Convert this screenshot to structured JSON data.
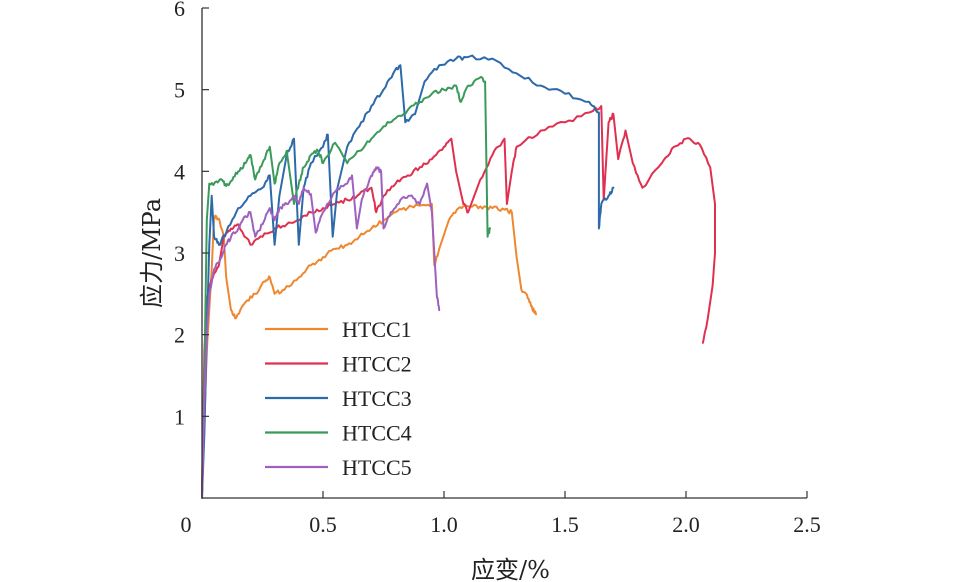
{
  "chart_data": {
    "type": "line",
    "title": "",
    "xlabel": "应变/%",
    "ylabel": "应力/MPa",
    "xlim": [
      0,
      2.5
    ],
    "ylim": [
      0,
      6
    ],
    "xticks": [
      {
        "value": 0,
        "label": "0"
      },
      {
        "value": 0.5,
        "label": "0.5"
      },
      {
        "value": 1.0,
        "label": "1.0"
      },
      {
        "value": 1.5,
        "label": "1.5"
      },
      {
        "value": 2.0,
        "label": "2.0"
      },
      {
        "value": 2.5,
        "label": "2.5"
      }
    ],
    "yticks": [
      {
        "value": 1,
        "label": "1"
      },
      {
        "value": 2,
        "label": "2"
      },
      {
        "value": 3,
        "label": "3"
      },
      {
        "value": 4,
        "label": "4"
      },
      {
        "value": 5,
        "label": "5"
      },
      {
        "value": 6,
        "label": "6"
      }
    ],
    "grid": false,
    "legend_position": "center-left",
    "series": [
      {
        "name": "HTCC1",
        "color": "#ee8830",
        "points": [
          [
            0,
            0.1
          ],
          [
            0.02,
            1.8
          ],
          [
            0.04,
            2.8
          ],
          [
            0.05,
            3.45
          ],
          [
            0.07,
            3.42
          ],
          [
            0.09,
            3.2
          ],
          [
            0.1,
            2.7
          ],
          [
            0.12,
            2.3
          ],
          [
            0.14,
            2.2
          ],
          [
            0.18,
            2.4
          ],
          [
            0.22,
            2.5
          ],
          [
            0.26,
            2.65
          ],
          [
            0.28,
            2.7
          ],
          [
            0.3,
            2.5
          ],
          [
            0.34,
            2.55
          ],
          [
            0.4,
            2.7
          ],
          [
            0.45,
            2.85
          ],
          [
            0.5,
            2.95
          ],
          [
            0.55,
            3.05
          ],
          [
            0.6,
            3.1
          ],
          [
            0.65,
            3.2
          ],
          [
            0.7,
            3.3
          ],
          [
            0.75,
            3.4
          ],
          [
            0.8,
            3.5
          ],
          [
            0.85,
            3.55
          ],
          [
            0.9,
            3.58
          ],
          [
            0.95,
            3.6
          ],
          [
            0.96,
            2.85
          ],
          [
            0.98,
            3.05
          ],
          [
            1.02,
            3.4
          ],
          [
            1.06,
            3.55
          ],
          [
            1.1,
            3.57
          ],
          [
            1.15,
            3.57
          ],
          [
            1.2,
            3.55
          ],
          [
            1.25,
            3.53
          ],
          [
            1.28,
            3.5
          ],
          [
            1.3,
            2.95
          ],
          [
            1.32,
            2.55
          ],
          [
            1.34,
            2.5
          ],
          [
            1.36,
            2.35
          ],
          [
            1.38,
            2.25
          ]
        ]
      },
      {
        "name": "HTCC2",
        "color": "#e03050",
        "points": [
          [
            0,
            0.1
          ],
          [
            0.01,
            1.8
          ],
          [
            0.02,
            2.4
          ],
          [
            0.03,
            2.6
          ],
          [
            0.05,
            2.75
          ],
          [
            0.07,
            2.85
          ],
          [
            0.09,
            3.2
          ],
          [
            0.12,
            3.3
          ],
          [
            0.15,
            3.35
          ],
          [
            0.2,
            3.1
          ],
          [
            0.25,
            3.2
          ],
          [
            0.3,
            3.3
          ],
          [
            0.35,
            3.35
          ],
          [
            0.4,
            3.4
          ],
          [
            0.45,
            3.5
          ],
          [
            0.5,
            3.55
          ],
          [
            0.55,
            3.6
          ],
          [
            0.6,
            3.65
          ],
          [
            0.65,
            3.72
          ],
          [
            0.7,
            3.8
          ],
          [
            0.72,
            3.5
          ],
          [
            0.75,
            3.7
          ],
          [
            0.8,
            3.85
          ],
          [
            0.85,
            3.95
          ],
          [
            0.9,
            4.05
          ],
          [
            0.95,
            4.15
          ],
          [
            1.0,
            4.3
          ],
          [
            1.03,
            4.4
          ],
          [
            1.05,
            4.0
          ],
          [
            1.08,
            3.6
          ],
          [
            1.1,
            3.5
          ],
          [
            1.15,
            3.9
          ],
          [
            1.2,
            4.2
          ],
          [
            1.25,
            4.4
          ],
          [
            1.26,
            3.6
          ],
          [
            1.28,
            4.0
          ],
          [
            1.3,
            4.3
          ],
          [
            1.4,
            4.5
          ],
          [
            1.5,
            4.6
          ],
          [
            1.6,
            4.72
          ],
          [
            1.65,
            4.8
          ],
          [
            1.66,
            3.65
          ],
          [
            1.68,
            4.6
          ],
          [
            1.7,
            4.7
          ],
          [
            1.72,
            4.15
          ],
          [
            1.75,
            4.5
          ],
          [
            1.78,
            4.1
          ],
          [
            1.82,
            3.8
          ],
          [
            1.9,
            4.1
          ],
          [
            1.95,
            4.3
          ],
          [
            2.0,
            4.4
          ],
          [
            2.05,
            4.35
          ],
          [
            2.1,
            4.05
          ],
          [
            2.12,
            3.6
          ],
          [
            2.12,
            3.0
          ],
          [
            2.11,
            2.6
          ],
          [
            2.09,
            2.2
          ],
          [
            2.07,
            1.9
          ]
        ]
      },
      {
        "name": "HTCC3",
        "color": "#2d6aaa",
        "points": [
          [
            0,
            0
          ],
          [
            0.01,
            0.8
          ],
          [
            0.02,
            2.0
          ],
          [
            0.03,
            3.1
          ],
          [
            0.04,
            3.7
          ],
          [
            0.05,
            3.2
          ],
          [
            0.07,
            3.1
          ],
          [
            0.1,
            3.25
          ],
          [
            0.15,
            3.55
          ],
          [
            0.2,
            3.7
          ],
          [
            0.25,
            3.8
          ],
          [
            0.28,
            3.95
          ],
          [
            0.3,
            3.1
          ],
          [
            0.32,
            3.7
          ],
          [
            0.35,
            4.2
          ],
          [
            0.38,
            4.4
          ],
          [
            0.4,
            3.1
          ],
          [
            0.42,
            3.8
          ],
          [
            0.45,
            4.1
          ],
          [
            0.5,
            4.3
          ],
          [
            0.52,
            4.45
          ],
          [
            0.54,
            3.2
          ],
          [
            0.56,
            3.8
          ],
          [
            0.6,
            4.3
          ],
          [
            0.65,
            4.55
          ],
          [
            0.7,
            4.8
          ],
          [
            0.75,
            5.0
          ],
          [
            0.8,
            5.25
          ],
          [
            0.82,
            5.3
          ],
          [
            0.84,
            4.6
          ],
          [
            0.88,
            4.7
          ],
          [
            0.92,
            5.1
          ],
          [
            0.98,
            5.3
          ],
          [
            1.05,
            5.38
          ],
          [
            1.1,
            5.4
          ],
          [
            1.2,
            5.38
          ],
          [
            1.3,
            5.2
          ],
          [
            1.4,
            5.05
          ],
          [
            1.5,
            4.95
          ],
          [
            1.6,
            4.85
          ],
          [
            1.64,
            4.72
          ],
          [
            1.64,
            3.3
          ],
          [
            1.65,
            3.6
          ],
          [
            1.68,
            3.7
          ],
          [
            1.7,
            3.8
          ]
        ]
      },
      {
        "name": "HTCC4",
        "color": "#3a9a5a",
        "points": [
          [
            0,
            0
          ],
          [
            0.01,
            1.5
          ],
          [
            0.02,
            3.4
          ],
          [
            0.03,
            3.85
          ],
          [
            0.05,
            3.85
          ],
          [
            0.08,
            3.9
          ],
          [
            0.1,
            3.82
          ],
          [
            0.12,
            3.88
          ],
          [
            0.15,
            4.0
          ],
          [
            0.18,
            4.1
          ],
          [
            0.2,
            4.2
          ],
          [
            0.22,
            3.9
          ],
          [
            0.25,
            4.1
          ],
          [
            0.28,
            4.3
          ],
          [
            0.3,
            3.85
          ],
          [
            0.32,
            4.1
          ],
          [
            0.35,
            4.25
          ],
          [
            0.38,
            3.6
          ],
          [
            0.4,
            3.85
          ],
          [
            0.42,
            4.05
          ],
          [
            0.45,
            4.2
          ],
          [
            0.48,
            4.25
          ],
          [
            0.5,
            4.1
          ],
          [
            0.55,
            4.35
          ],
          [
            0.6,
            4.1
          ],
          [
            0.65,
            4.25
          ],
          [
            0.7,
            4.4
          ],
          [
            0.75,
            4.55
          ],
          [
            0.8,
            4.65
          ],
          [
            0.85,
            4.75
          ],
          [
            0.9,
            4.85
          ],
          [
            0.95,
            4.95
          ],
          [
            1.0,
            5.0
          ],
          [
            1.05,
            5.05
          ],
          [
            1.07,
            4.85
          ],
          [
            1.1,
            5.05
          ],
          [
            1.15,
            5.15
          ],
          [
            1.17,
            5.1
          ],
          [
            1.18,
            3.2
          ],
          [
            1.19,
            3.3
          ]
        ]
      },
      {
        "name": "HTCC5",
        "color": "#a060c0",
        "points": [
          [
            0,
            0
          ],
          [
            0.01,
            1.2
          ],
          [
            0.02,
            2.0
          ],
          [
            0.03,
            2.5
          ],
          [
            0.05,
            2.8
          ],
          [
            0.08,
            2.95
          ],
          [
            0.1,
            3.1
          ],
          [
            0.12,
            3.2
          ],
          [
            0.15,
            3.3
          ],
          [
            0.18,
            3.45
          ],
          [
            0.2,
            3.5
          ],
          [
            0.22,
            3.2
          ],
          [
            0.25,
            3.35
          ],
          [
            0.28,
            3.55
          ],
          [
            0.3,
            3.4
          ],
          [
            0.32,
            3.55
          ],
          [
            0.35,
            3.6
          ],
          [
            0.38,
            3.7
          ],
          [
            0.4,
            3.6
          ],
          [
            0.42,
            3.8
          ],
          [
            0.45,
            3.72
          ],
          [
            0.47,
            3.25
          ],
          [
            0.5,
            3.5
          ],
          [
            0.55,
            3.75
          ],
          [
            0.6,
            3.85
          ],
          [
            0.62,
            3.95
          ],
          [
            0.64,
            3.3
          ],
          [
            0.66,
            3.65
          ],
          [
            0.7,
            3.95
          ],
          [
            0.72,
            4.05
          ],
          [
            0.74,
            4.0
          ],
          [
            0.75,
            3.3
          ],
          [
            0.78,
            3.5
          ],
          [
            0.82,
            3.65
          ],
          [
            0.86,
            3.7
          ],
          [
            0.9,
            3.6
          ],
          [
            0.93,
            3.85
          ],
          [
            0.95,
            3.5
          ],
          [
            0.97,
            2.5
          ],
          [
            0.98,
            2.3
          ]
        ]
      }
    ]
  }
}
